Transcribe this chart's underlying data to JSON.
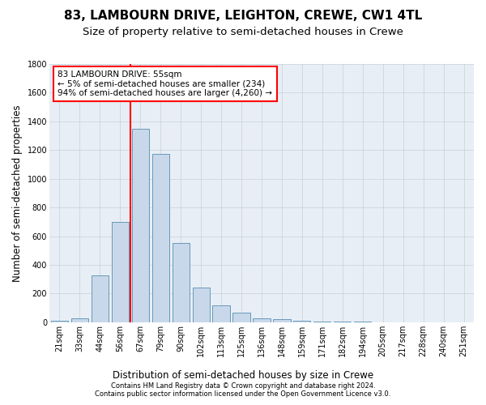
{
  "title": "83, LAMBOURN DRIVE, LEIGHTON, CREWE, CW1 4TL",
  "subtitle": "Size of property relative to semi-detached houses in Crewe",
  "xlabel": "Distribution of semi-detached houses by size in Crewe",
  "ylabel": "Number of semi-detached properties",
  "categories": [
    "21sqm",
    "33sqm",
    "44sqm",
    "56sqm",
    "67sqm",
    "79sqm",
    "90sqm",
    "102sqm",
    "113sqm",
    "125sqm",
    "136sqm",
    "148sqm",
    "159sqm",
    "171sqm",
    "182sqm",
    "194sqm",
    "205sqm",
    "217sqm",
    "228sqm",
    "240sqm",
    "251sqm"
  ],
  "values": [
    10,
    30,
    325,
    700,
    1350,
    1175,
    550,
    240,
    120,
    65,
    30,
    20,
    10,
    5,
    3,
    2,
    1,
    1,
    1,
    1,
    1
  ],
  "bar_color": "#c8d8ea",
  "bar_edge_color": "#6699bb",
  "ylim": [
    0,
    1800
  ],
  "yticks": [
    0,
    200,
    400,
    600,
    800,
    1000,
    1200,
    1400,
    1600,
    1800
  ],
  "property_label": "83 LAMBOURN DRIVE: 55sqm",
  "pct_smaller": 5,
  "pct_smaller_n": 234,
  "pct_larger": 94,
  "pct_larger_n": 4260,
  "vline_x": 3.5,
  "footnote1": "Contains HM Land Registry data © Crown copyright and database right 2024.",
  "footnote2": "Contains public sector information licensed under the Open Government Licence v3.0.",
  "grid_color": "#c8d0d8",
  "bg_color": "#ffffff",
  "plot_bg_color": "#e8eef5",
  "title_fontsize": 11,
  "subtitle_fontsize": 9.5,
  "axis_label_fontsize": 8.5,
  "tick_fontsize": 7,
  "annot_fontsize": 7.5,
  "footnote_fontsize": 6
}
